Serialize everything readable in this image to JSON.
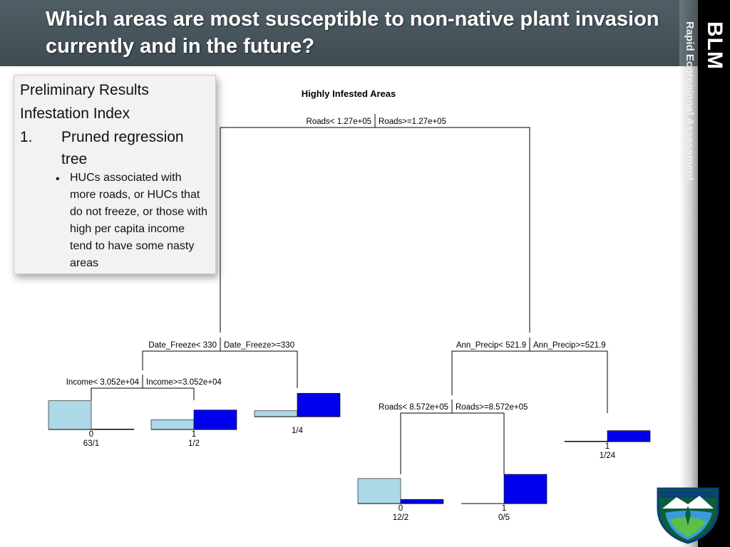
{
  "header": {
    "title": "Which areas are most susceptible to non-native plant invasion currently and in the future?"
  },
  "sidebar": {
    "brand": "BLM",
    "subtitle": "Rapid Ecoregional Assessment"
  },
  "textbox": {
    "line1": "Preliminary Results",
    "line2": "Infestation Index",
    "item_number": "1.",
    "item_text": "Pruned regression tree",
    "bullet_glyph": "•",
    "bullet_text": "HUCs associated with more roads, or HUCs that do not freeze, or those with high per capita income tend to have some nasty areas"
  },
  "tree": {
    "title": "Highly Infested Areas",
    "colors": {
      "low": "#add8e6",
      "high": "#0000ee",
      "line": "#000000"
    },
    "splits": [
      {
        "left": "Roads< 1.27e+05",
        "right": "Roads>=1.27e+05"
      },
      {
        "left": "Date_Freeze< 330",
        "right": "Date_Freeze>=330"
      },
      {
        "left": "Income< 3.052e+04",
        "right": "Income>=3.052e+04"
      },
      {
        "left": "Ann_Precip< 521.9",
        "right": "Ann_Precip>=521.9"
      },
      {
        "left": "Roads< 8.572e+05",
        "right": "Roads>=8.572e+05"
      }
    ],
    "leaves": [
      {
        "label": "63/1",
        "class": "0",
        "class_shown": true,
        "low_fraction": 0.984,
        "high_fraction": 0.016
      },
      {
        "label": "1/2",
        "class": "1",
        "class_shown": true,
        "low_fraction": 0.333,
        "high_fraction": 0.667
      },
      {
        "label": "1/4",
        "class": "1",
        "class_shown": false,
        "low_fraction": 0.2,
        "high_fraction": 0.8
      },
      {
        "label": "12/2",
        "class": "0",
        "class_shown": true,
        "low_fraction": 0.857,
        "high_fraction": 0.143
      },
      {
        "label": "0/5",
        "class": "1",
        "class_shown": true,
        "low_fraction": 0.0,
        "high_fraction": 1.0
      },
      {
        "label": "1/24",
        "class": "1",
        "class_shown": true,
        "low_fraction": 0.04,
        "high_fraction": 0.96
      }
    ]
  }
}
